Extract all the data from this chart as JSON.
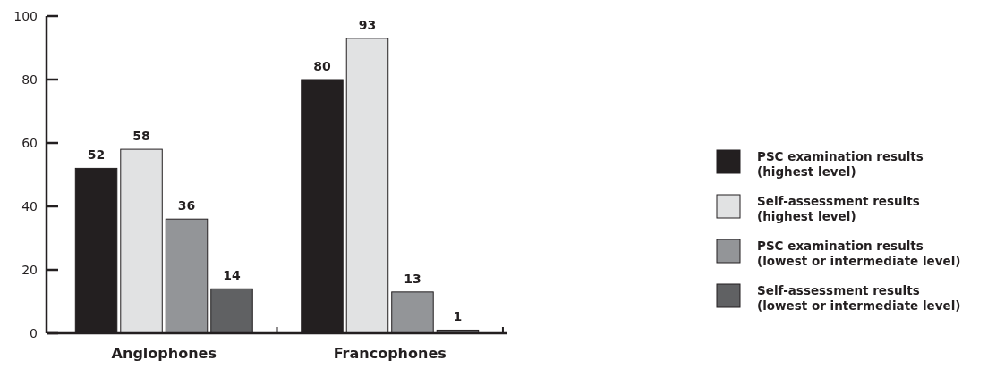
{
  "chart_data": {
    "type": "bar",
    "categories": [
      "Anglophones",
      "Francophones"
    ],
    "ylim": [
      0,
      100
    ],
    "yticks": [
      0,
      20,
      40,
      60,
      80,
      100
    ],
    "grid": false,
    "legend": "right",
    "data_labels": true,
    "series": [
      {
        "name": "PSC examination results (highest level)",
        "color": "#231f20",
        "values": [
          52,
          80
        ]
      },
      {
        "name": "Self-assessment results (highest level)",
        "color": "#e1e2e3",
        "values": [
          58,
          93
        ]
      },
      {
        "name": "PSC examination results (lowest or intermediate level)",
        "color": "#939598",
        "values": [
          36,
          13
        ]
      },
      {
        "name": "Self-assessment results (lowest or intermediate level)",
        "color": "#606163",
        "values": [
          14,
          1
        ]
      }
    ]
  }
}
